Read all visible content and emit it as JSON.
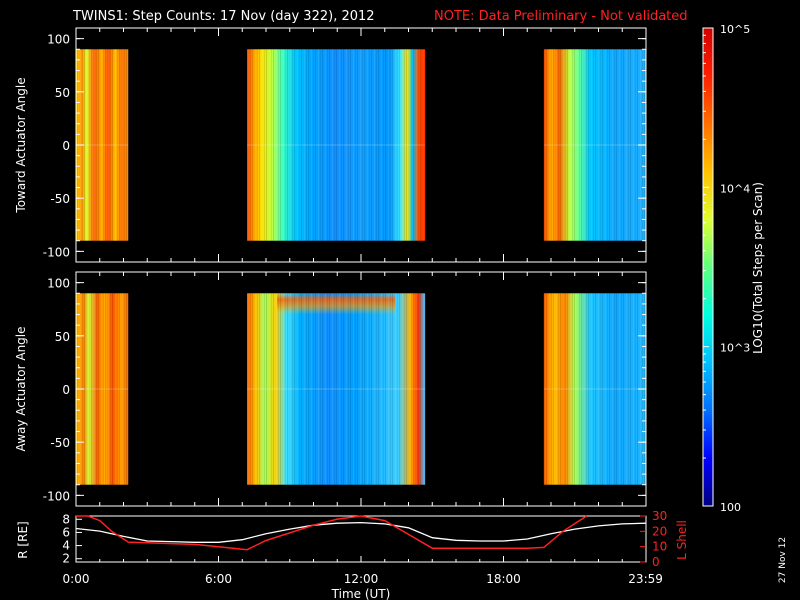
{
  "header": {
    "title": "TWINS1: Step Counts: 17 Nov (day 322), 2012",
    "note": "NOTE: Data Preliminary - Not validated"
  },
  "stamp": "27 Nov 12",
  "colorbar": {
    "label": "LOG10(Total Steps per Scan)",
    "ticks": [
      "10^5",
      "10^4",
      "10^3",
      "100"
    ],
    "range": [
      100,
      100000
    ],
    "colors": [
      "#000080",
      "#0000ff",
      "#0070ff",
      "#00c0ff",
      "#00ffe0",
      "#60ff80",
      "#e0ff30",
      "#ffc000",
      "#ff7000",
      "#ff2000",
      "#d00000"
    ]
  },
  "chart_data": [
    {
      "type": "heatmap",
      "panel": "toward",
      "ylabel": "Toward Actuator Angle",
      "ylim": [
        -110,
        110
      ],
      "yticks": [
        100,
        50,
        0,
        -50,
        -100
      ],
      "xlim_hours": [
        0,
        24
      ],
      "data_blocks_hours": [
        [
          0,
          2.2
        ],
        [
          7.2,
          14.7
        ],
        [
          19.7,
          24
        ]
      ]
    },
    {
      "type": "heatmap",
      "panel": "away",
      "ylabel": "Away Actuator Angle",
      "ylim": [
        -110,
        110
      ],
      "yticks": [
        100,
        50,
        0,
        -50,
        -100
      ],
      "xlim_hours": [
        0,
        24
      ],
      "data_blocks_hours": [
        [
          0,
          2.2
        ],
        [
          7.2,
          14.7
        ],
        [
          19.7,
          24
        ]
      ]
    },
    {
      "type": "line",
      "panel": "orbit",
      "ylabel": "R [RE]",
      "y2label": "L Shell",
      "ylim": [
        1.5,
        8.5
      ],
      "yticks": [
        2,
        4,
        6,
        8
      ],
      "y2lim": [
        0,
        30
      ],
      "y2ticks": [
        0,
        10,
        20,
        30
      ],
      "xlabel": "Time (UT)",
      "xticks": [
        "0:00",
        "6:00",
        "12:00",
        "18:00",
        "23:59"
      ],
      "series": [
        {
          "color": "#ffffff",
          "x": [
            0,
            1,
            2,
            3,
            4,
            5,
            6,
            7,
            8,
            9,
            10,
            11,
            12,
            13,
            14,
            15,
            16,
            17,
            18,
            19,
            20,
            21,
            22,
            23,
            24
          ],
          "y": [
            6.6,
            6.2,
            5.4,
            4.7,
            4.6,
            4.5,
            4.5,
            4.9,
            5.8,
            6.5,
            7.1,
            7.4,
            7.5,
            7.3,
            6.7,
            5.2,
            4.8,
            4.7,
            4.7,
            5.0,
            5.8,
            6.5,
            7.0,
            7.3,
            7.4
          ]
        },
        {
          "color": "#ff2020",
          "x": [
            0,
            0.5,
            1.0,
            1.5,
            2.2,
            3,
            4,
            5,
            6,
            7.2,
            8,
            9,
            10,
            11,
            12,
            13,
            14,
            15,
            16,
            17,
            18,
            19,
            19.7,
            20.5,
            21.5
          ],
          "y": [
            33,
            31,
            27,
            20,
            13,
            12.5,
            12,
            11.5,
            10,
            8,
            14,
            19,
            24,
            28,
            30,
            27,
            18,
            9,
            9,
            9,
            9,
            9,
            9.5,
            20,
            31
          ]
        }
      ]
    }
  ]
}
